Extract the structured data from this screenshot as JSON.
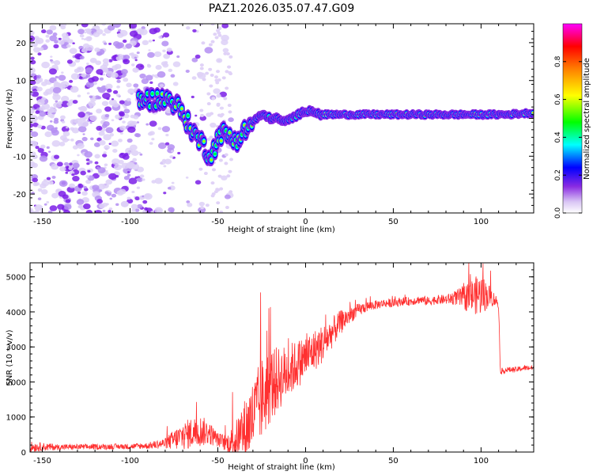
{
  "title": "PAZ1.2026.035.07.47.G09",
  "chart_data": [
    {
      "type": "heatmap",
      "name": "spectrogram",
      "xlabel": "Height of straight line (km)",
      "ylabel": "Frequency (Hz)",
      "xlim": [
        -157,
        130
      ],
      "ylim": [
        -25,
        25
      ],
      "x_ticks": [
        -150,
        -100,
        -50,
        0,
        50,
        100
      ],
      "x_tick_labels": [
        "-150",
        "-100",
        "-50",
        "0",
        "50",
        "100"
      ],
      "y_ticks": [
        -20,
        -10,
        0,
        10,
        20
      ],
      "y_tick_labels": [
        "-20",
        "-10",
        "0",
        "10",
        "20"
      ],
      "colorbar": {
        "label": "Normalized spectral amplitude",
        "range": [
          0,
          1
        ],
        "ticks": [
          0.0,
          0.2,
          0.4,
          0.6,
          0.8
        ],
        "tick_labels": [
          "0.0",
          "0.2",
          "0.4",
          "0.6",
          "0.8"
        ],
        "colormap": [
          "#ffffff",
          "#d8c4f4",
          "#8a2be2",
          "#0000ff",
          "#00ffff",
          "#00ff00",
          "#ffff00",
          "#ff8000",
          "#ff0000",
          "#ff00ff"
        ]
      },
      "ridge": {
        "x": [
          -157,
          -120,
          -100,
          -90,
          -82,
          -78,
          -74,
          -70,
          -66,
          -62,
          -58,
          -55,
          -52,
          -49,
          -46,
          -43,
          -40,
          -36,
          -32,
          -28,
          -24,
          -20,
          -16,
          -12,
          -8,
          -4,
          0,
          4,
          8,
          12,
          20,
          30,
          40,
          60,
          80,
          100,
          115,
          130
        ],
        "y": [
          3,
          4,
          5,
          5,
          5,
          5,
          4,
          1,
          -2,
          -5,
          -7,
          -10,
          -8,
          -4,
          -4,
          -5,
          -6,
          -4,
          -2,
          0,
          1,
          0,
          0,
          -1,
          0,
          1,
          2,
          2,
          1,
          1,
          1,
          1,
          1,
          1,
          1,
          1,
          1,
          1.5
        ]
      }
    },
    {
      "type": "line",
      "name": "snr",
      "xlabel": "Height of straight line (km)",
      "ylabel": "SNR (10 * v/v)",
      "xlim": [
        -157,
        130
      ],
      "ylim": [
        0,
        5400
      ],
      "x_ticks": [
        -150,
        -100,
        -50,
        0,
        50,
        100
      ],
      "x_tick_labels": [
        "-150",
        "-100",
        "-50",
        "0",
        "50",
        "100"
      ],
      "y_ticks": [
        0,
        1000,
        2000,
        3000,
        4000,
        5000
      ],
      "y_tick_labels": [
        "0",
        "1000",
        "2000",
        "3000",
        "4000",
        "5000"
      ],
      "series": [
        {
          "name": "SNR",
          "color": "#ff3030",
          "x": [
            -157,
            -140,
            -120,
            -100,
            -90,
            -80,
            -75,
            -70,
            -65,
            -60,
            -55,
            -50,
            -45,
            -40,
            -35,
            -30,
            -25,
            -20,
            -15,
            -10,
            -5,
            0,
            5,
            10,
            15,
            20,
            25,
            30,
            35,
            40,
            45,
            50,
            55,
            60,
            65,
            70,
            75,
            80,
            85,
            90,
            95,
            100,
            105,
            109,
            110,
            111,
            115,
            120,
            125,
            130
          ],
          "values": [
            150,
            140,
            150,
            160,
            180,
            250,
            350,
            450,
            550,
            600,
            550,
            350,
            250,
            350,
            600,
            1000,
            1500,
            1900,
            2100,
            2300,
            2500,
            2700,
            2900,
            3100,
            3400,
            3700,
            3900,
            4050,
            4150,
            4200,
            4250,
            4250,
            4300,
            4300,
            4350,
            4300,
            4350,
            4350,
            4400,
            4400,
            4450,
            4500,
            4450,
            4300,
            4200,
            2300,
            2350,
            2350,
            2400,
            2400
          ],
          "noise": [
            150,
            80,
            80,
            80,
            90,
            150,
            300,
            400,
            450,
            450,
            350,
            200,
            250,
            500,
            900,
            1100,
            1200,
            1100,
            900,
            800,
            700,
            650,
            600,
            550,
            450,
            350,
            250,
            180,
            150,
            130,
            120,
            120,
            120,
            120,
            120,
            130,
            130,
            140,
            200,
            350,
            500,
            600,
            300,
            150,
            100,
            80,
            80,
            80,
            80,
            80
          ]
        }
      ]
    }
  ]
}
